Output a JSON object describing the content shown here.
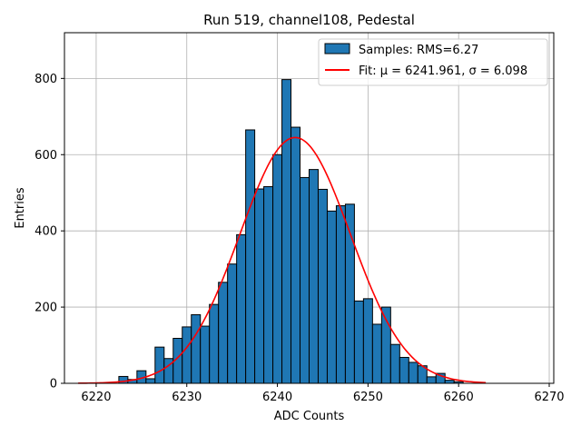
{
  "chart_data": {
    "type": "bar",
    "title": "Run 519, channel108, Pedestal",
    "xlabel": "ADC Counts",
    "ylabel": "Entries",
    "xlim": [
      6216.5,
      6270.5
    ],
    "ylim": [
      0,
      920
    ],
    "xticks": [
      6220,
      6230,
      6240,
      6250,
      6260,
      6270
    ],
    "yticks": [
      0,
      200,
      400,
      600,
      800
    ],
    "grid": true,
    "legend_position": "top-right",
    "bin_width": 1,
    "series": [
      {
        "name": "Samples: RMS=6.27",
        "kind": "histogram",
        "color": "#1f77b4",
        "edge_color": "#000000",
        "bins": [
          6223,
          6224,
          6225,
          6226,
          6227,
          6228,
          6229,
          6230,
          6231,
          6232,
          6233,
          6234,
          6235,
          6236,
          6237,
          6238,
          6239,
          6240,
          6241,
          6242,
          6243,
          6244,
          6245,
          6246,
          6247,
          6248,
          6249,
          6250,
          6251,
          6252,
          6253,
          6254,
          6255,
          6256,
          6257,
          6258,
          6259,
          6260
        ],
        "values": [
          18,
          10,
          33,
          12,
          95,
          65,
          118,
          148,
          180,
          150,
          207,
          265,
          313,
          390,
          665,
          510,
          516,
          600,
          797,
          672,
          540,
          561,
          509,
          452,
          466,
          470,
          216,
          222,
          155,
          200,
          102,
          68,
          55,
          46,
          17,
          26,
          8,
          4
        ]
      },
      {
        "name": "Fit: μ = 6241.961, σ = 6.098",
        "kind": "gaussian-fit",
        "color": "#ff0000",
        "mu": 6241.961,
        "sigma": 6.098,
        "amplitude": 645,
        "x_range": [
          6218,
          6263
        ]
      }
    ]
  }
}
